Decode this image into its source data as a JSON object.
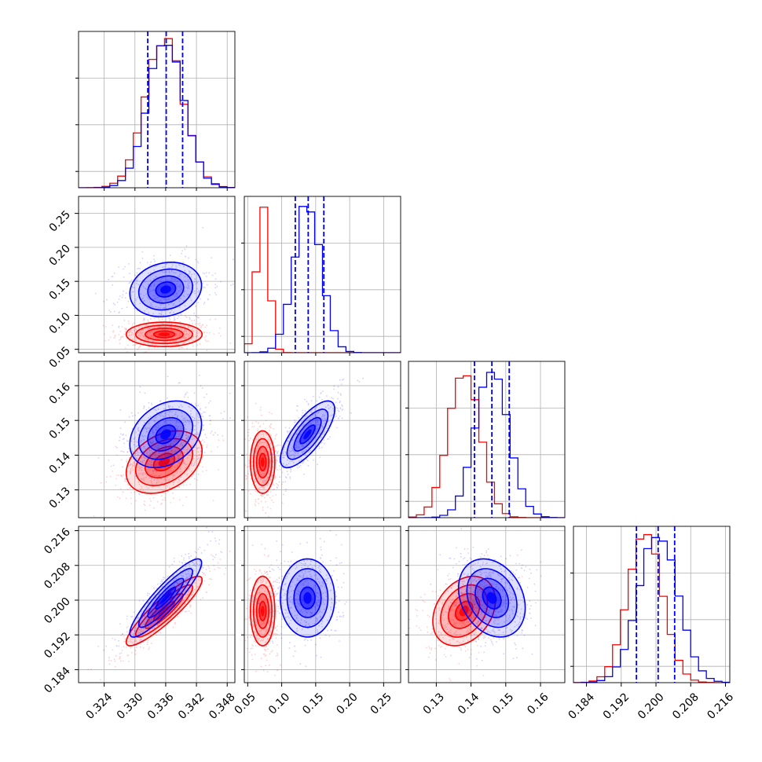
{
  "chart_data": {
    "type": "corner",
    "title": "",
    "colors": {
      "blue": "#0000ff",
      "red": "#ff0000"
    },
    "series": [
      {
        "name": "blue",
        "color": "#0000ff"
      },
      {
        "name": "red",
        "color": "#ff0000"
      }
    ],
    "params": [
      {
        "id": "p0",
        "range": [
          0.319,
          0.3495
        ],
        "ticks": [
          0.324,
          0.33,
          0.336,
          0.342,
          0.348
        ],
        "tick_labels": [
          "0.324",
          "0.330",
          "0.336",
          "0.342",
          "0.348"
        ],
        "blue": {
          "mean": 0.336,
          "sx": 0.0035
        },
        "red": {
          "mean": 0.3357,
          "sx": 0.0037
        },
        "quantiles_blue": [
          0.3325,
          0.3361,
          0.3393
        ]
      },
      {
        "id": "p1",
        "range": [
          0.045,
          0.275
        ],
        "ticks": [
          0.05,
          0.1,
          0.15,
          0.2,
          0.25
        ],
        "tick_labels": [
          "0.05",
          "0.10",
          "0.15",
          "0.20",
          "0.25"
        ],
        "blue": {
          "mean": 0.138,
          "sx": 0.02
        },
        "red": {
          "mean": 0.072,
          "sx": 0.009
        },
        "quantiles_blue": [
          0.12,
          0.139,
          0.162
        ]
      },
      {
        "id": "p2",
        "range": [
          0.122,
          0.167
        ],
        "ticks": [
          0.13,
          0.14,
          0.15,
          0.16
        ],
        "tick_labels": [
          "0.13",
          "0.14",
          "0.15",
          "0.16"
        ],
        "blue": {
          "mean": 0.146,
          "sx": 0.0048
        },
        "red": {
          "mean": 0.138,
          "sx": 0.0045
        },
        "quantiles_blue": [
          0.141,
          0.146,
          0.151
        ]
      },
      {
        "id": "p3",
        "range": [
          0.181,
          0.217
        ],
        "ticks": [
          0.184,
          0.192,
          0.2,
          0.208,
          0.216
        ],
        "tick_labels": [
          "0.184",
          "0.192",
          "0.200",
          "0.208",
          "0.216"
        ],
        "blue": {
          "mean": 0.2005,
          "sx": 0.0045
        },
        "red": {
          "mean": 0.1975,
          "sx": 0.004
        },
        "quantiles_blue": [
          0.1955,
          0.2005,
          0.2043
        ]
      }
    ],
    "correlations": {
      "blue": {
        "1-0": 0.15,
        "2-0": 0.3,
        "2-1": 0.75,
        "3-0": 0.9,
        "3-1": 0.0,
        "3-2": -0.25
      },
      "red": {
        "1-0": 0.0,
        "2-0": 0.35,
        "2-1": 0.0,
        "3-0": 0.9,
        "3-1": 0.0,
        "3-2": 0.3
      }
    },
    "grid": true,
    "legend": "none"
  }
}
